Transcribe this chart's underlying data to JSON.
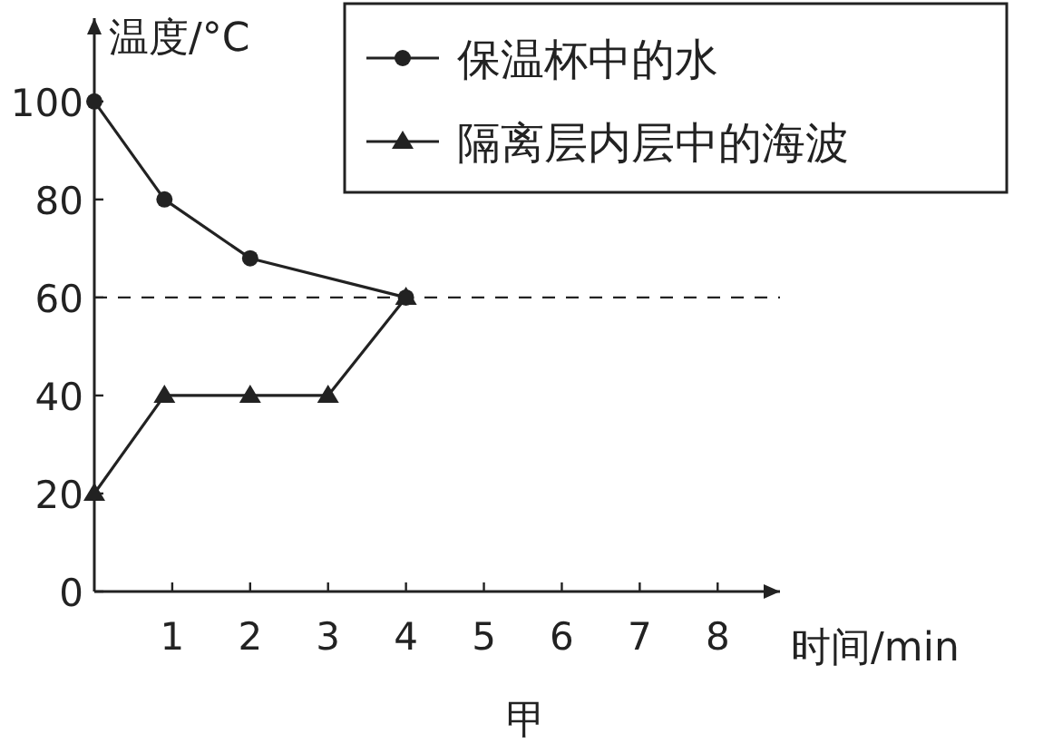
{
  "chart_data": {
    "type": "line",
    "xlabel": "时间/min",
    "ylabel": "温度/°C",
    "annotations": [
      "甲"
    ],
    "xlim": [
      0,
      8.8
    ],
    "ylim": [
      0,
      117
    ],
    "xticks": [
      1,
      2,
      3,
      4,
      5,
      6,
      7,
      8
    ],
    "yticks": [
      0,
      20,
      40,
      60,
      80,
      100
    ],
    "legend": "top right",
    "line_style": "solid",
    "ref_lines": [
      {
        "axis": "y",
        "value": 60,
        "line_style": "dashed",
        "color": "#222222"
      }
    ],
    "series": [
      {
        "name": "保温杯中的水",
        "color": "#222222",
        "marker": "circle",
        "x": [
          0,
          0.9,
          2,
          4
        ],
        "values": [
          100,
          80,
          68,
          60
        ]
      },
      {
        "name": "隔离层内层中的海波",
        "color": "#222222",
        "marker": "triangle",
        "x": [
          0,
          0.9,
          2,
          3,
          4
        ],
        "values": [
          20,
          40,
          40,
          40,
          60
        ]
      }
    ]
  }
}
